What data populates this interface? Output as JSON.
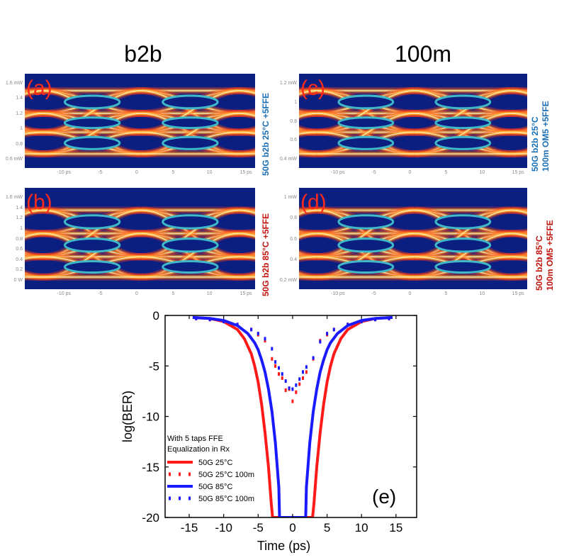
{
  "column_titles": {
    "left": "b2b",
    "right": "100m"
  },
  "eye_panels": [
    {
      "tag": "(a)",
      "side_lines": [
        "50G b2b 25°C +5FFE"
      ],
      "side_color": "#1a6fb5",
      "y_ticks": [
        "1.6 mW",
        "1.4",
        "1.2",
        "1",
        "0.8",
        "0.6 mW"
      ],
      "x_ticks": [
        "-10 ps",
        "-5",
        "0",
        "5",
        "10",
        "15 ps"
      ]
    },
    {
      "tag": "(b)",
      "side_lines": [
        "50G b2b 85°C +5FFE"
      ],
      "side_color": "#c0140c",
      "y_ticks": [
        "1.6 mW",
        "1.4",
        "1.2",
        "1",
        "0.8",
        "0.6",
        "0.4",
        "0.2",
        "0 W"
      ],
      "x_ticks": [
        "-10 ps",
        "-5",
        "0",
        "5",
        "10",
        "15 ps"
      ]
    },
    {
      "tag": "(c)",
      "side_lines": [
        "50G b2b 25°C",
        "100m OM5 +5FFE"
      ],
      "side_color": "#1a6fb5",
      "y_ticks": [
        "1.2 mW",
        "1",
        "0.8",
        "0.6",
        "0.4 mW"
      ],
      "x_ticks": [
        "-10 ps",
        "-5",
        "0",
        "5",
        "10",
        "15 ps"
      ]
    },
    {
      "tag": "(d)",
      "side_lines": [
        "50G b2b 85°C",
        "100m OM5 +5FFE"
      ],
      "side_color": "#c0140c",
      "y_ticks": [
        "1 mW",
        "0.8",
        "0.6",
        "0.4",
        "0.2 mW"
      ],
      "x_ticks": [
        "-10 ps",
        "-5",
        "0",
        "5",
        "10",
        "15 ps"
      ]
    }
  ],
  "chart_data": {
    "type": "line",
    "tag": "(e)",
    "xlabel": "Time (ps)",
    "ylabel": "log(BER)",
    "xlim": [
      -18.5,
      18
    ],
    "ylim": [
      -20,
      0
    ],
    "x_ticks": [
      -15,
      -10,
      -5,
      0,
      5,
      10,
      15
    ],
    "y_ticks": [
      0,
      -5,
      -10,
      -15,
      -20
    ],
    "legend_title": [
      "With 5 taps FFE",
      "Equalization in Rx"
    ],
    "series": [
      {
        "name": "50G 25°C",
        "style": "solid",
        "color": "#ff1a1a",
        "x": [
          -14.5,
          -12,
          -10,
          -8,
          -7,
          -6,
          -5.5,
          -5,
          -4.5,
          -4,
          -3.5,
          -3.1,
          -2.9,
          2.9,
          3.1,
          3.5,
          4,
          4.5,
          5,
          5.5,
          6,
          7,
          8,
          10,
          12,
          14.5
        ],
        "y": [
          -0.2,
          -0.3,
          -0.6,
          -1.4,
          -2.3,
          -3.8,
          -5,
          -6.6,
          -8.8,
          -11.6,
          -15,
          -18.6,
          -20,
          -20,
          -18.6,
          -15,
          -11.6,
          -8.8,
          -6.6,
          -5,
          -3.8,
          -2.3,
          -1.4,
          -0.6,
          -0.3,
          -0.2
        ]
      },
      {
        "name": "50G 25°C 100m",
        "style": "dotted",
        "color": "#ff1a1a",
        "x": [
          -14,
          -12,
          -10,
          -8,
          -6,
          -5,
          -4,
          -3,
          -2.5,
          -2,
          -1.5,
          -1,
          -0.5,
          0,
          0.5,
          1,
          1.5,
          2,
          3,
          4,
          5,
          6,
          8,
          10,
          12,
          14
        ],
        "y": [
          -0.3,
          -0.4,
          -0.6,
          -0.9,
          -1.4,
          -1.9,
          -2.5,
          -4.3,
          -5,
          -5.8,
          -6.2,
          -7.4,
          -7.3,
          -8.5,
          -7.6,
          -6.8,
          -6.2,
          -5.6,
          -4.3,
          -2.5,
          -1.9,
          -1.4,
          -0.9,
          -0.6,
          -0.4,
          -0.3
        ]
      },
      {
        "name": "50G 85°C",
        "style": "solid",
        "color": "#1a1aff",
        "x": [
          -14.5,
          -12,
          -10,
          -8,
          -6.5,
          -5.5,
          -5,
          -4.5,
          -4,
          -3.5,
          -3,
          -2.5,
          -2,
          -1.9,
          1.9,
          2,
          2.5,
          3,
          3.5,
          4,
          4.5,
          5,
          5.5,
          6.5,
          8,
          10,
          12,
          14.5
        ],
        "y": [
          -0.2,
          -0.3,
          -0.5,
          -1,
          -1.8,
          -2.7,
          -3.4,
          -4.4,
          -5.6,
          -7.3,
          -9.5,
          -12.6,
          -17,
          -20,
          -20,
          -17,
          -12.6,
          -9.5,
          -7.3,
          -5.6,
          -4.4,
          -3.4,
          -2.7,
          -1.8,
          -1,
          -0.5,
          -0.3,
          -0.2
        ]
      },
      {
        "name": "50G 85°C 100m",
        "style": "dotted",
        "color": "#1a1aff",
        "x": [
          -14,
          -12,
          -10,
          -8,
          -6,
          -5,
          -4,
          -3,
          -2.5,
          -2,
          -1.5,
          -1,
          -0.5,
          0,
          0.5,
          1,
          1.5,
          2,
          3,
          4,
          5,
          6,
          8,
          10,
          12,
          14
        ],
        "y": [
          -0.3,
          -0.4,
          -0.6,
          -0.9,
          -1.4,
          -1.8,
          -2.3,
          -3.3,
          -4.6,
          -5.2,
          -5.8,
          -6.5,
          -7.2,
          -7.3,
          -6.9,
          -6.3,
          -5.6,
          -5.1,
          -4.2,
          -2.6,
          -1.8,
          -1.4,
          -0.9,
          -0.6,
          -0.4,
          -0.3
        ]
      }
    ]
  }
}
